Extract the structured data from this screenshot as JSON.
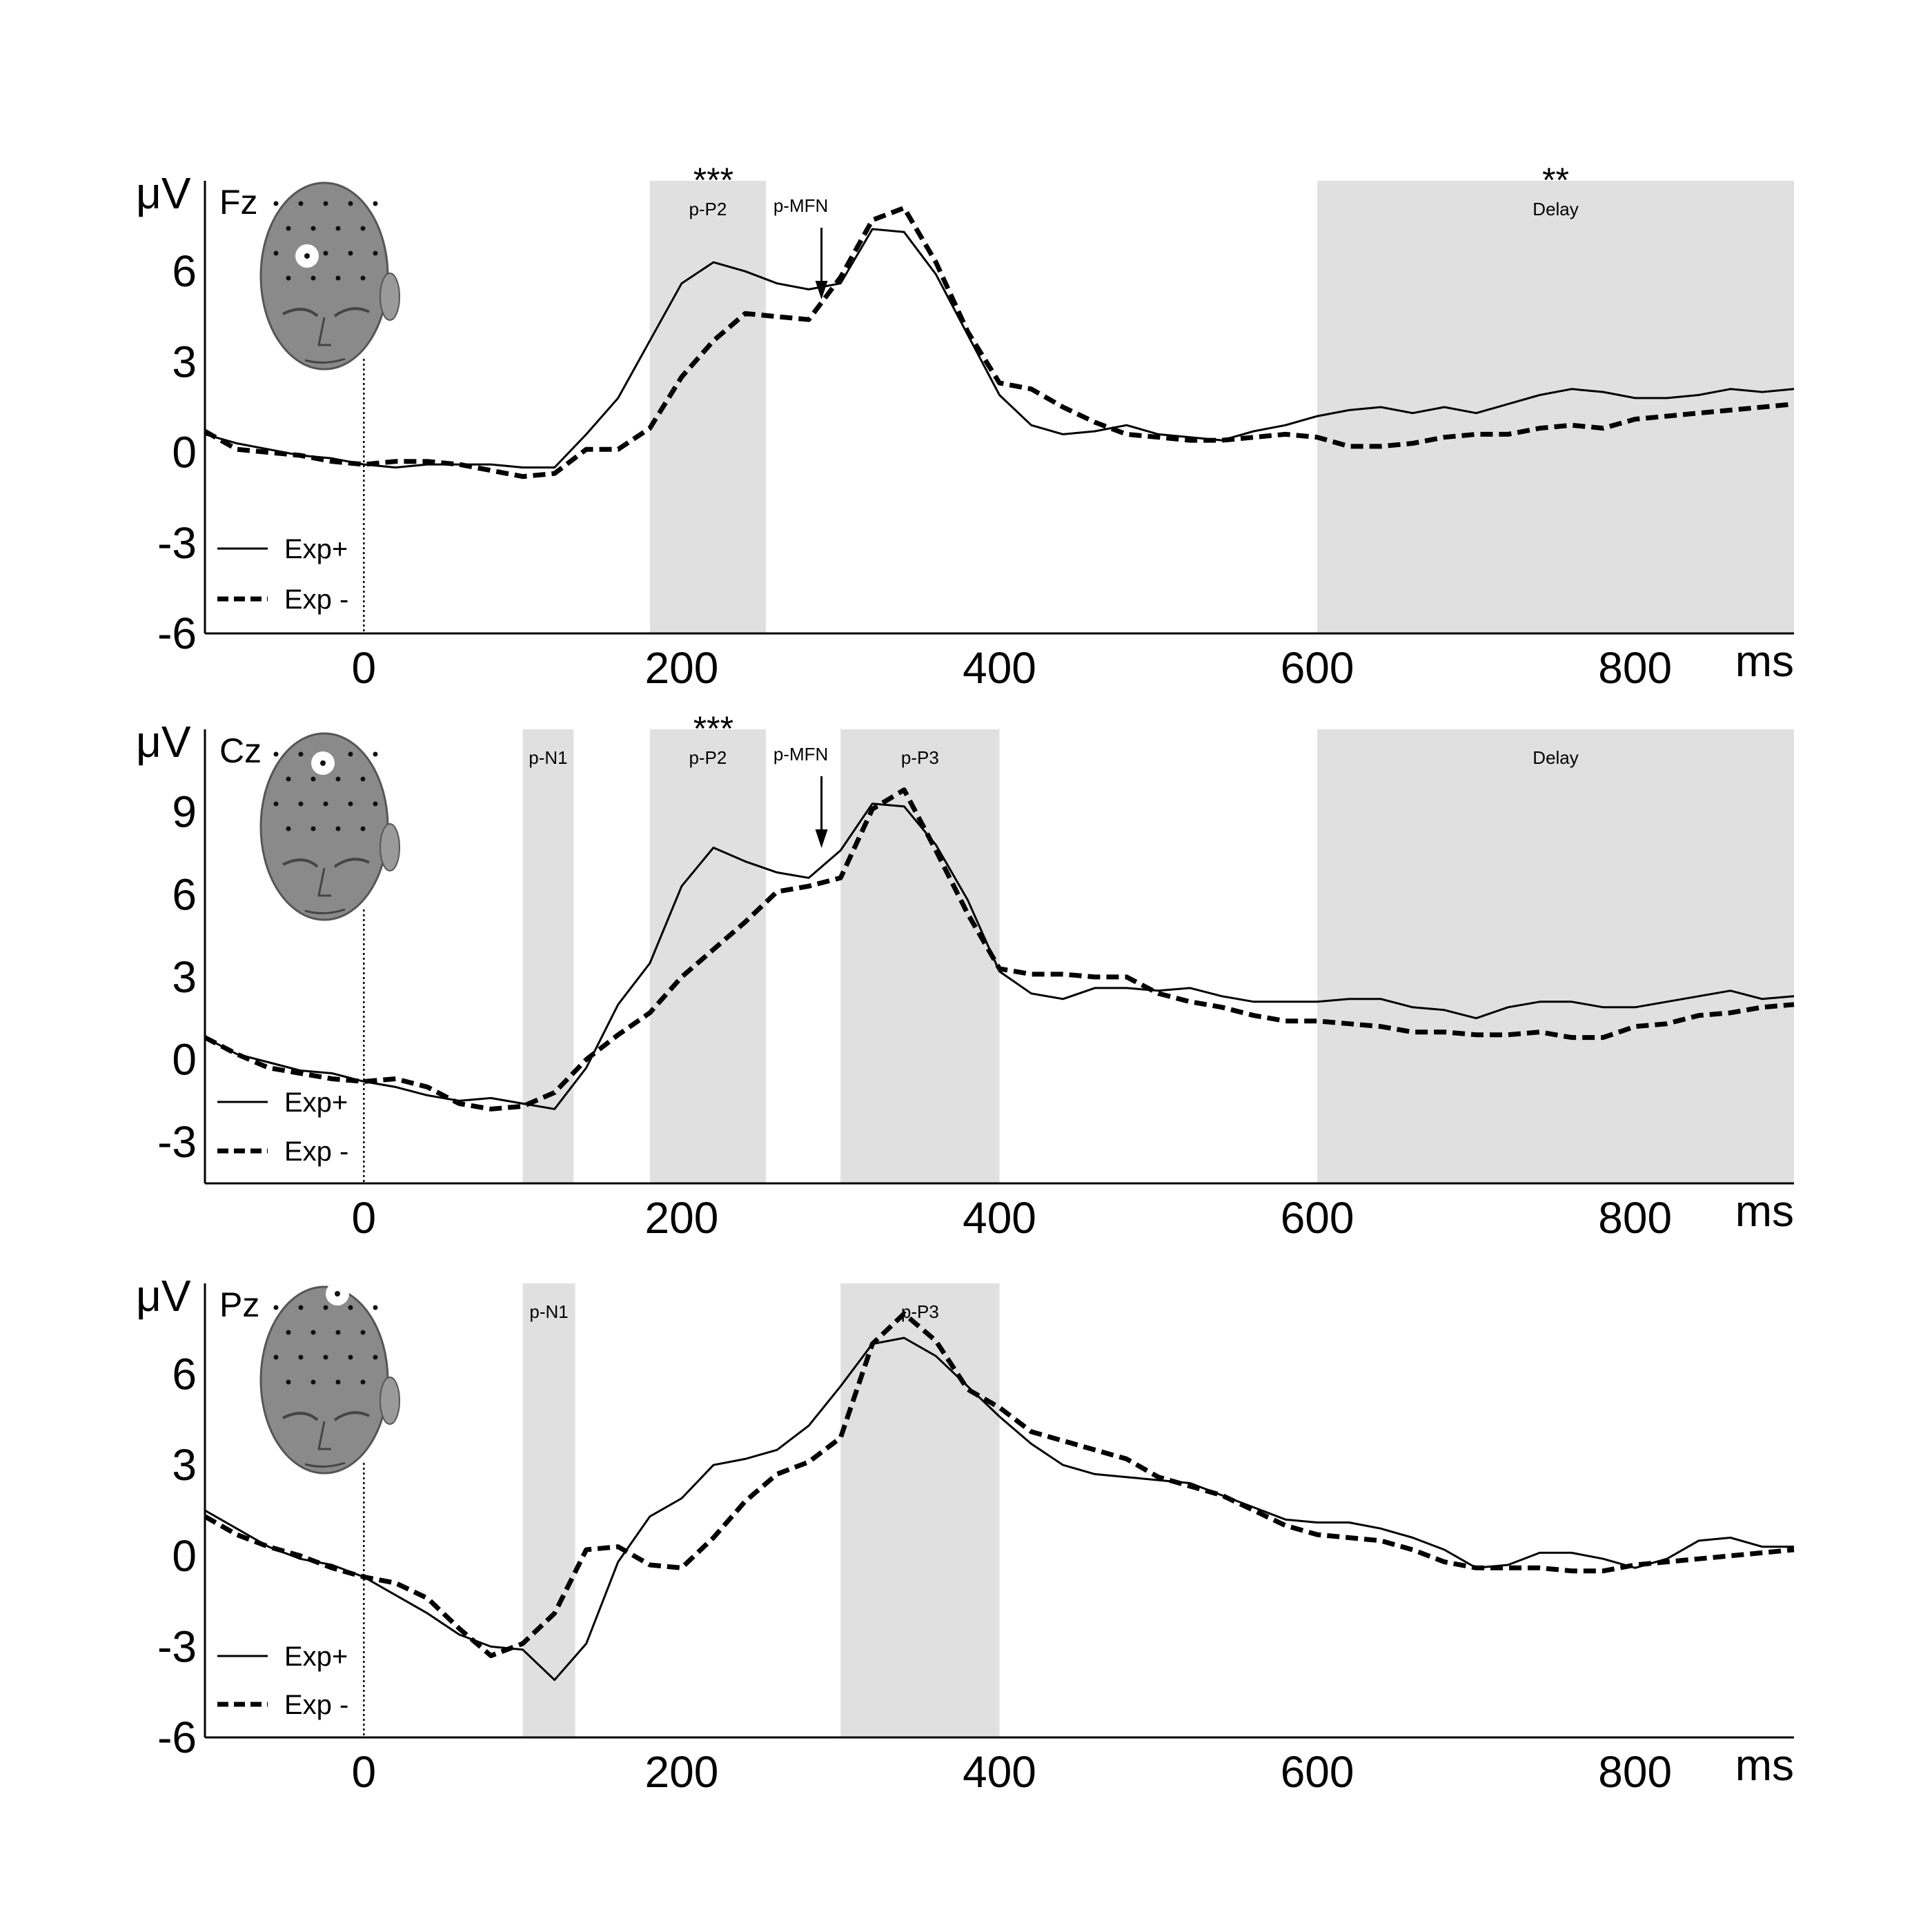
{
  "colors": {
    "band": "#e0e0e0",
    "line": "#000000",
    "head": "#8a8a8a"
  },
  "chart_data": [
    {
      "type": "line",
      "electrode": "Fz",
      "ylabel": "μV",
      "xunit": "ms",
      "xlim": [
        -100,
        900
      ],
      "ylim": [
        -6,
        9
      ],
      "yticks": [
        "6",
        "3",
        "0",
        "-3",
        "-6"
      ],
      "ytick_values": [
        6,
        3,
        0,
        -3,
        -6
      ],
      "xticks": [
        "0",
        "200",
        "400",
        "600",
        "800"
      ],
      "xtick_values": [
        0,
        200,
        400,
        600,
        800
      ],
      "stim_onset": 0,
      "bands": [
        {
          "label": "p-P2",
          "start": 180,
          "end": 253,
          "stars": "***"
        },
        {
          "label": "Delay",
          "start": 600,
          "end": 900,
          "stars": "**"
        }
      ],
      "arrow": {
        "label": "p-MFN",
        "x": 288
      },
      "series": [
        {
          "name": "Exp+",
          "style": "solid",
          "x": [
            -100,
            -80,
            -60,
            -40,
            -20,
            0,
            20,
            40,
            60,
            80,
            100,
            120,
            140,
            160,
            180,
            200,
            220,
            240,
            260,
            280,
            300,
            320,
            340,
            360,
            380,
            400,
            420,
            440,
            460,
            480,
            500,
            520,
            540,
            560,
            580,
            600,
            620,
            640,
            660,
            680,
            700,
            720,
            740,
            760,
            780,
            800,
            820,
            840,
            860,
            880,
            900
          ],
          "y": [
            0.6,
            0.3,
            0.1,
            -0.1,
            -0.2,
            -0.4,
            -0.5,
            -0.4,
            -0.4,
            -0.4,
            -0.5,
            -0.5,
            0.6,
            1.8,
            3.7,
            5.6,
            6.3,
            6.0,
            5.6,
            5.4,
            5.6,
            7.4,
            7.3,
            5.9,
            3.9,
            1.9,
            0.9,
            0.6,
            0.7,
            0.9,
            0.6,
            0.5,
            0.4,
            0.7,
            0.9,
            1.2,
            1.4,
            1.5,
            1.3,
            1.5,
            1.3,
            1.6,
            1.9,
            2.1,
            2.0,
            1.8,
            1.8,
            1.9,
            2.1,
            2.0,
            2.1
          ]
        },
        {
          "name": "Exp -",
          "style": "dashed",
          "x": [
            -100,
            -80,
            -60,
            -40,
            -20,
            0,
            20,
            40,
            60,
            80,
            100,
            120,
            140,
            160,
            180,
            200,
            220,
            240,
            260,
            280,
            300,
            320,
            340,
            360,
            380,
            400,
            420,
            440,
            460,
            480,
            500,
            520,
            540,
            560,
            580,
            600,
            620,
            640,
            660,
            680,
            700,
            720,
            740,
            760,
            780,
            800,
            820,
            840,
            860,
            880,
            900
          ],
          "y": [
            0.7,
            0.1,
            0.0,
            -0.1,
            -0.3,
            -0.4,
            -0.3,
            -0.3,
            -0.4,
            -0.6,
            -0.8,
            -0.7,
            0.1,
            0.1,
            0.8,
            2.5,
            3.7,
            4.6,
            4.5,
            4.4,
            5.8,
            7.7,
            8.1,
            6.3,
            4.0,
            2.3,
            2.1,
            1.5,
            1.0,
            0.6,
            0.5,
            0.4,
            0.4,
            0.5,
            0.6,
            0.5,
            0.2,
            0.2,
            0.3,
            0.5,
            0.6,
            0.6,
            0.8,
            0.9,
            0.8,
            1.1,
            1.2,
            1.3,
            1.4,
            1.5,
            1.6
          ]
        }
      ]
    },
    {
      "type": "line",
      "electrode": "Cz",
      "ylabel": "μV",
      "xunit": "ms",
      "xlim": [
        -100,
        900
      ],
      "ylim": [
        -4.5,
        12
      ],
      "yticks": [
        "9",
        "6",
        "3",
        "0",
        "-3"
      ],
      "ytick_values": [
        9,
        6,
        3,
        0,
        -3
      ],
      "xticks": [
        "0",
        "200",
        "400",
        "600",
        "800"
      ],
      "xtick_values": [
        0,
        200,
        400,
        600,
        800
      ],
      "stim_onset": 0,
      "bands": [
        {
          "label": "p-N1",
          "start": 100,
          "end": 132,
          "stars": ""
        },
        {
          "label": "p-P2",
          "start": 180,
          "end": 253,
          "stars": "***"
        },
        {
          "label": "p-P3",
          "start": 300,
          "end": 400,
          "stars": ""
        },
        {
          "label": "Delay",
          "start": 600,
          "end": 900,
          "stars": ""
        }
      ],
      "arrow": {
        "label": "p-MFN",
        "x": 288
      },
      "series": [
        {
          "name": "Exp+",
          "style": "solid",
          "x": [
            -100,
            -80,
            -60,
            -40,
            -20,
            0,
            20,
            40,
            60,
            80,
            100,
            120,
            140,
            160,
            180,
            200,
            220,
            240,
            260,
            280,
            300,
            320,
            340,
            360,
            380,
            400,
            420,
            440,
            460,
            480,
            500,
            520,
            540,
            560,
            580,
            600,
            620,
            640,
            660,
            680,
            700,
            720,
            740,
            760,
            780,
            800,
            820,
            840,
            860,
            880,
            900
          ],
          "y": [
            0.8,
            0.2,
            -0.1,
            -0.4,
            -0.5,
            -0.8,
            -1.0,
            -1.3,
            -1.5,
            -1.4,
            -1.6,
            -1.8,
            -0.3,
            2.0,
            3.5,
            6.3,
            7.7,
            7.2,
            6.8,
            6.6,
            7.6,
            9.3,
            9.2,
            7.8,
            5.8,
            3.2,
            2.4,
            2.2,
            2.6,
            2.6,
            2.5,
            2.6,
            2.3,
            2.1,
            2.1,
            2.1,
            2.2,
            2.2,
            1.9,
            1.8,
            1.5,
            1.9,
            2.1,
            2.1,
            1.9,
            1.9,
            2.1,
            2.3,
            2.5,
            2.2,
            2.3
          ]
        },
        {
          "name": "Exp -",
          "style": "dashed",
          "x": [
            -100,
            -80,
            -60,
            -40,
            -20,
            0,
            20,
            40,
            60,
            80,
            100,
            120,
            140,
            160,
            180,
            200,
            220,
            240,
            260,
            280,
            300,
            320,
            340,
            360,
            380,
            400,
            420,
            440,
            460,
            480,
            500,
            520,
            540,
            560,
            580,
            600,
            620,
            640,
            660,
            680,
            700,
            720,
            740,
            760,
            780,
            800,
            820,
            840,
            860,
            880,
            900
          ],
          "y": [
            0.8,
            0.2,
            -0.3,
            -0.5,
            -0.7,
            -0.8,
            -0.7,
            -1.0,
            -1.6,
            -1.8,
            -1.7,
            -1.2,
            0.0,
            0.9,
            1.7,
            3.0,
            4.0,
            5.0,
            6.1,
            6.3,
            6.6,
            9.1,
            9.8,
            7.6,
            5.3,
            3.3,
            3.1,
            3.1,
            3.0,
            3.0,
            2.4,
            2.1,
            1.9,
            1.6,
            1.4,
            1.4,
            1.3,
            1.2,
            1.0,
            1.0,
            0.9,
            0.9,
            1.0,
            0.8,
            0.8,
            1.2,
            1.3,
            1.6,
            1.7,
            1.9,
            2.0
          ]
        }
      ]
    },
    {
      "type": "line",
      "electrode": "Pz",
      "ylabel": "μV",
      "xunit": "ms",
      "xlim": [
        -100,
        900
      ],
      "ylim": [
        -6,
        9
      ],
      "yticks": [
        "6",
        "3",
        "0",
        "-3",
        "-6"
      ],
      "ytick_values": [
        6,
        3,
        0,
        -3,
        -6
      ],
      "xticks": [
        "0",
        "200",
        "400",
        "600",
        "800"
      ],
      "xtick_values": [
        0,
        200,
        400,
        600,
        800
      ],
      "stim_onset": 0,
      "bands": [
        {
          "label": "p-N1",
          "start": 100,
          "end": 133,
          "stars": ""
        },
        {
          "label": "p-P3",
          "start": 300,
          "end": 400,
          "stars": ""
        }
      ],
      "arrow": null,
      "series": [
        {
          "name": "Exp+",
          "style": "solid",
          "x": [
            -100,
            -80,
            -60,
            -40,
            -20,
            0,
            20,
            40,
            60,
            80,
            100,
            120,
            140,
            160,
            180,
            200,
            220,
            240,
            260,
            280,
            300,
            320,
            340,
            360,
            380,
            400,
            420,
            440,
            460,
            480,
            500,
            520,
            540,
            560,
            580,
            600,
            620,
            640,
            660,
            680,
            700,
            720,
            740,
            760,
            780,
            800,
            820,
            840,
            860,
            880,
            900
          ],
          "y": [
            1.5,
            0.9,
            0.3,
            -0.1,
            -0.3,
            -0.7,
            -1.3,
            -1.9,
            -2.6,
            -3.0,
            -3.1,
            -4.1,
            -2.9,
            -0.2,
            1.3,
            1.9,
            3.0,
            3.2,
            3.5,
            4.3,
            5.6,
            7.0,
            7.2,
            6.6,
            5.6,
            4.6,
            3.7,
            3.0,
            2.7,
            2.6,
            2.5,
            2.4,
            2.0,
            1.6,
            1.2,
            1.1,
            1.1,
            0.9,
            0.6,
            0.2,
            -0.4,
            -0.3,
            0.1,
            0.1,
            -0.1,
            -0.4,
            -0.1,
            0.5,
            0.6,
            0.3,
            0.3
          ]
        },
        {
          "name": "Exp -",
          "style": "dashed",
          "x": [
            -100,
            -80,
            -60,
            -40,
            -20,
            0,
            20,
            40,
            60,
            80,
            100,
            120,
            140,
            160,
            180,
            200,
            220,
            240,
            260,
            280,
            300,
            320,
            340,
            360,
            380,
            400,
            420,
            440,
            460,
            480,
            500,
            520,
            540,
            560,
            580,
            600,
            620,
            640,
            660,
            680,
            700,
            720,
            740,
            760,
            780,
            800,
            820,
            840,
            860,
            880,
            900
          ],
          "y": [
            1.3,
            0.7,
            0.3,
            0.0,
            -0.4,
            -0.7,
            -0.9,
            -1.4,
            -2.4,
            -3.3,
            -2.9,
            -1.9,
            0.2,
            0.3,
            -0.3,
            -0.4,
            0.6,
            1.8,
            2.7,
            3.1,
            3.9,
            7.0,
            8.0,
            7.1,
            5.5,
            4.9,
            4.1,
            3.8,
            3.5,
            3.2,
            2.6,
            2.3,
            2.0,
            1.5,
            1.0,
            0.7,
            0.6,
            0.5,
            0.2,
            -0.2,
            -0.4,
            -0.4,
            -0.4,
            -0.5,
            -0.5,
            -0.3,
            -0.2,
            -0.1,
            0.0,
            0.1,
            0.2
          ]
        }
      ]
    }
  ]
}
